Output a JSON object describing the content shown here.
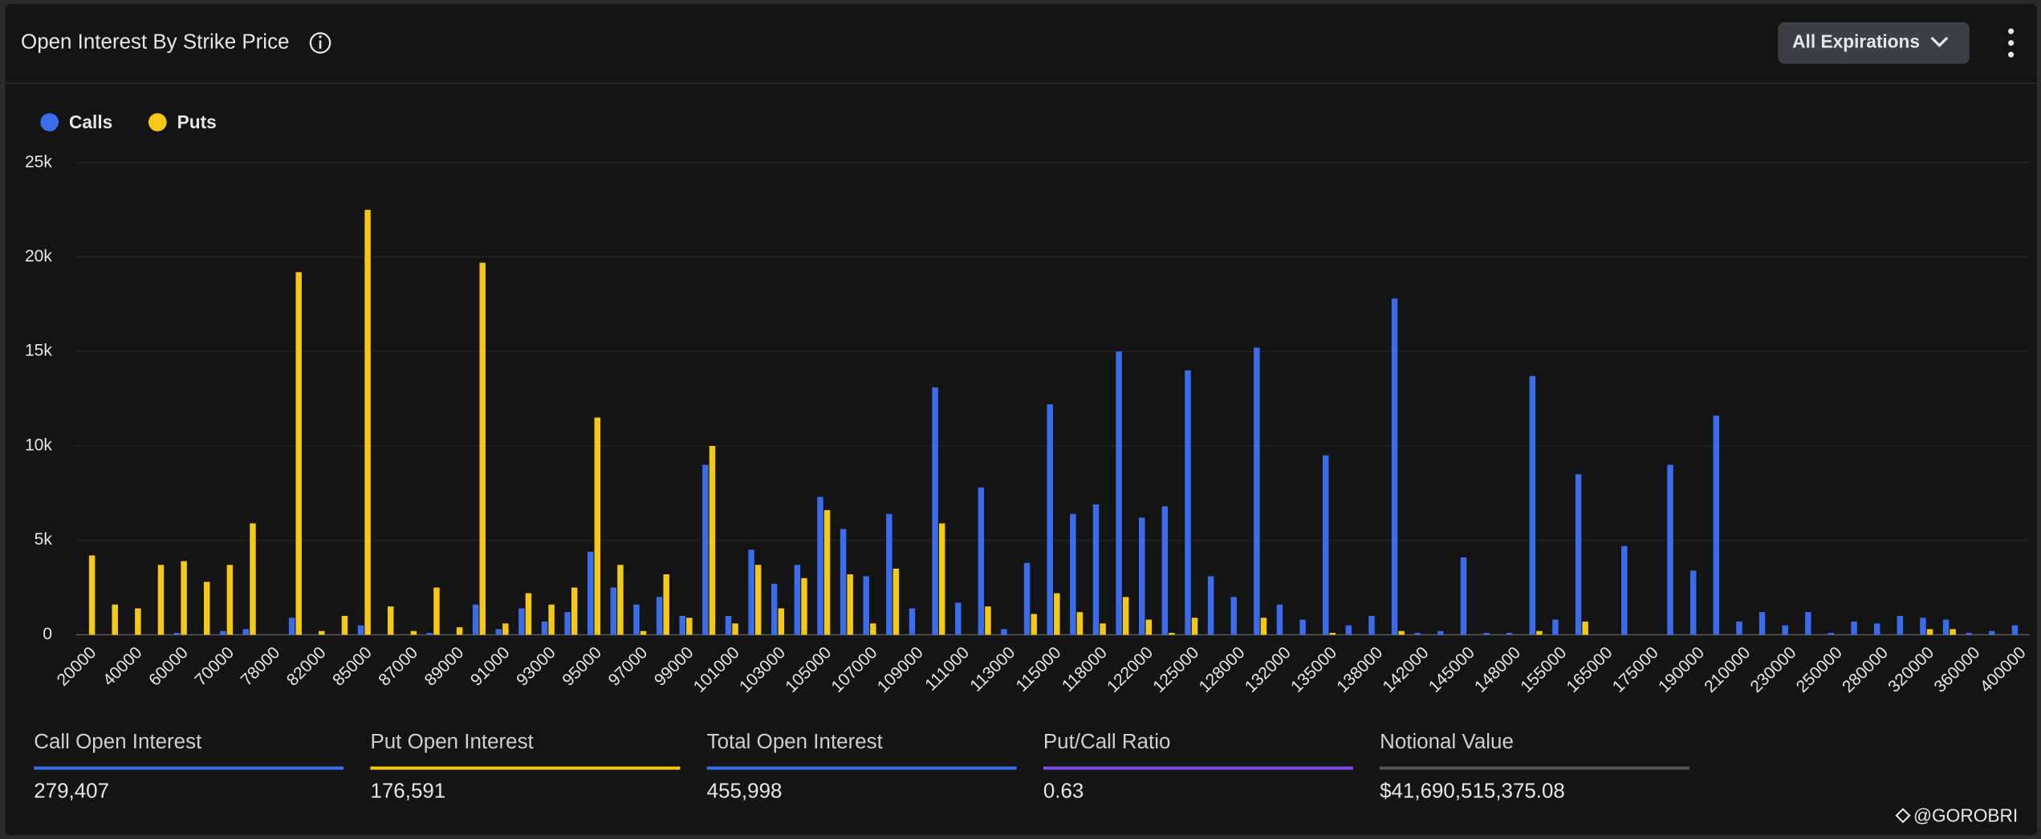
{
  "header": {
    "title": "Open Interest By Strike Price",
    "filter": "All Expirations"
  },
  "chart_data": {
    "type": "bar",
    "categories": [
      "20000",
      null,
      "40000",
      null,
      "60000",
      null,
      "70000",
      null,
      "78000",
      null,
      "82000",
      null,
      "85000",
      null,
      "87000",
      null,
      "89000",
      null,
      "91000",
      null,
      "93000",
      null,
      "95000",
      null,
      "97000",
      null,
      "99000",
      null,
      "101000",
      null,
      "103000",
      null,
      "105000",
      null,
      "107000",
      null,
      "109000",
      null,
      "111000",
      null,
      "113000",
      null,
      "115000",
      null,
      "118000",
      null,
      "122000",
      null,
      "125000",
      null,
      "128000",
      null,
      "132000",
      null,
      "135000",
      null,
      "138000",
      null,
      "142000",
      null,
      "145000",
      null,
      "148000",
      null,
      "155000",
      null,
      "165000",
      null,
      "175000",
      null,
      "190000",
      null,
      "210000",
      null,
      "230000",
      null,
      "250000",
      null,
      "280000",
      null,
      "320000",
      null,
      "360000",
      null,
      "400000"
    ],
    "series": [
      {
        "name": "Calls",
        "color": "#3a6cec",
        "values": [
          0,
          0,
          0,
          0,
          100,
          0,
          200,
          300,
          0,
          900,
          0,
          0,
          500,
          0,
          0,
          100,
          0,
          1600,
          300,
          1400,
          700,
          1200,
          4400,
          2500,
          1600,
          2000,
          1000,
          9000,
          1000,
          4500,
          2700,
          3700,
          7300,
          5600,
          3100,
          6400,
          1400,
          13100,
          1700,
          7800,
          300,
          3800,
          12200,
          6400,
          6900,
          15000,
          6200,
          6800,
          14000,
          3100,
          2000,
          15200,
          1600,
          800,
          9500,
          500,
          1000,
          17800,
          100,
          200,
          4100,
          100,
          100,
          13700,
          800,
          8500,
          0,
          4700,
          0,
          9000,
          3400,
          11600,
          700,
          1200,
          500,
          1200,
          100,
          700,
          600,
          1000,
          900,
          800,
          100,
          200,
          500
        ]
      },
      {
        "name": "Puts",
        "color": "#f5c816",
        "values": [
          4200,
          1600,
          1400,
          3700,
          3900,
          2800,
          3700,
          5900,
          0,
          19200,
          200,
          1000,
          22500,
          1500,
          200,
          2500,
          400,
          19700,
          600,
          2200,
          1600,
          2500,
          11500,
          3700,
          200,
          3200,
          900,
          10000,
          600,
          3700,
          1400,
          3000,
          6600,
          3200,
          600,
          3500,
          0,
          5900,
          0,
          1500,
          0,
          1100,
          2200,
          1200,
          600,
          2000,
          800,
          100,
          900,
          0,
          0,
          900,
          0,
          0,
          100,
          0,
          0,
          200,
          0,
          0,
          0,
          0,
          0,
          200,
          0,
          700,
          0,
          0,
          0,
          0,
          0,
          0,
          0,
          0,
          0,
          0,
          0,
          0,
          0,
          0,
          300,
          300,
          0,
          0,
          0
        ]
      }
    ],
    "ylim": [
      0,
      25000
    ],
    "yticks": [
      0,
      {
        "value": 5000,
        "label": "5k"
      },
      {
        "value": 10000,
        "label": "10k"
      },
      {
        "value": 15000,
        "label": "15k"
      },
      {
        "value": 20000,
        "label": "20k"
      },
      {
        "value": 25000,
        "label": "25k"
      }
    ],
    "grid": true
  },
  "stats": [
    {
      "label": "Call Open Interest",
      "value": "279,407",
      "color": "#3a6cec"
    },
    {
      "label": "Put Open Interest",
      "value": "176,591",
      "color": "#f5c816"
    },
    {
      "label": "Total Open Interest",
      "value": "455,998",
      "color": "#3a6cec"
    },
    {
      "label": "Put/Call Ratio",
      "value": "0.63",
      "color": "#7b4cf0"
    },
    {
      "label": "Notional Value",
      "value": "$41,690,515,375.08",
      "color": "#555555"
    }
  ],
  "watermark": "@GOROBRI"
}
